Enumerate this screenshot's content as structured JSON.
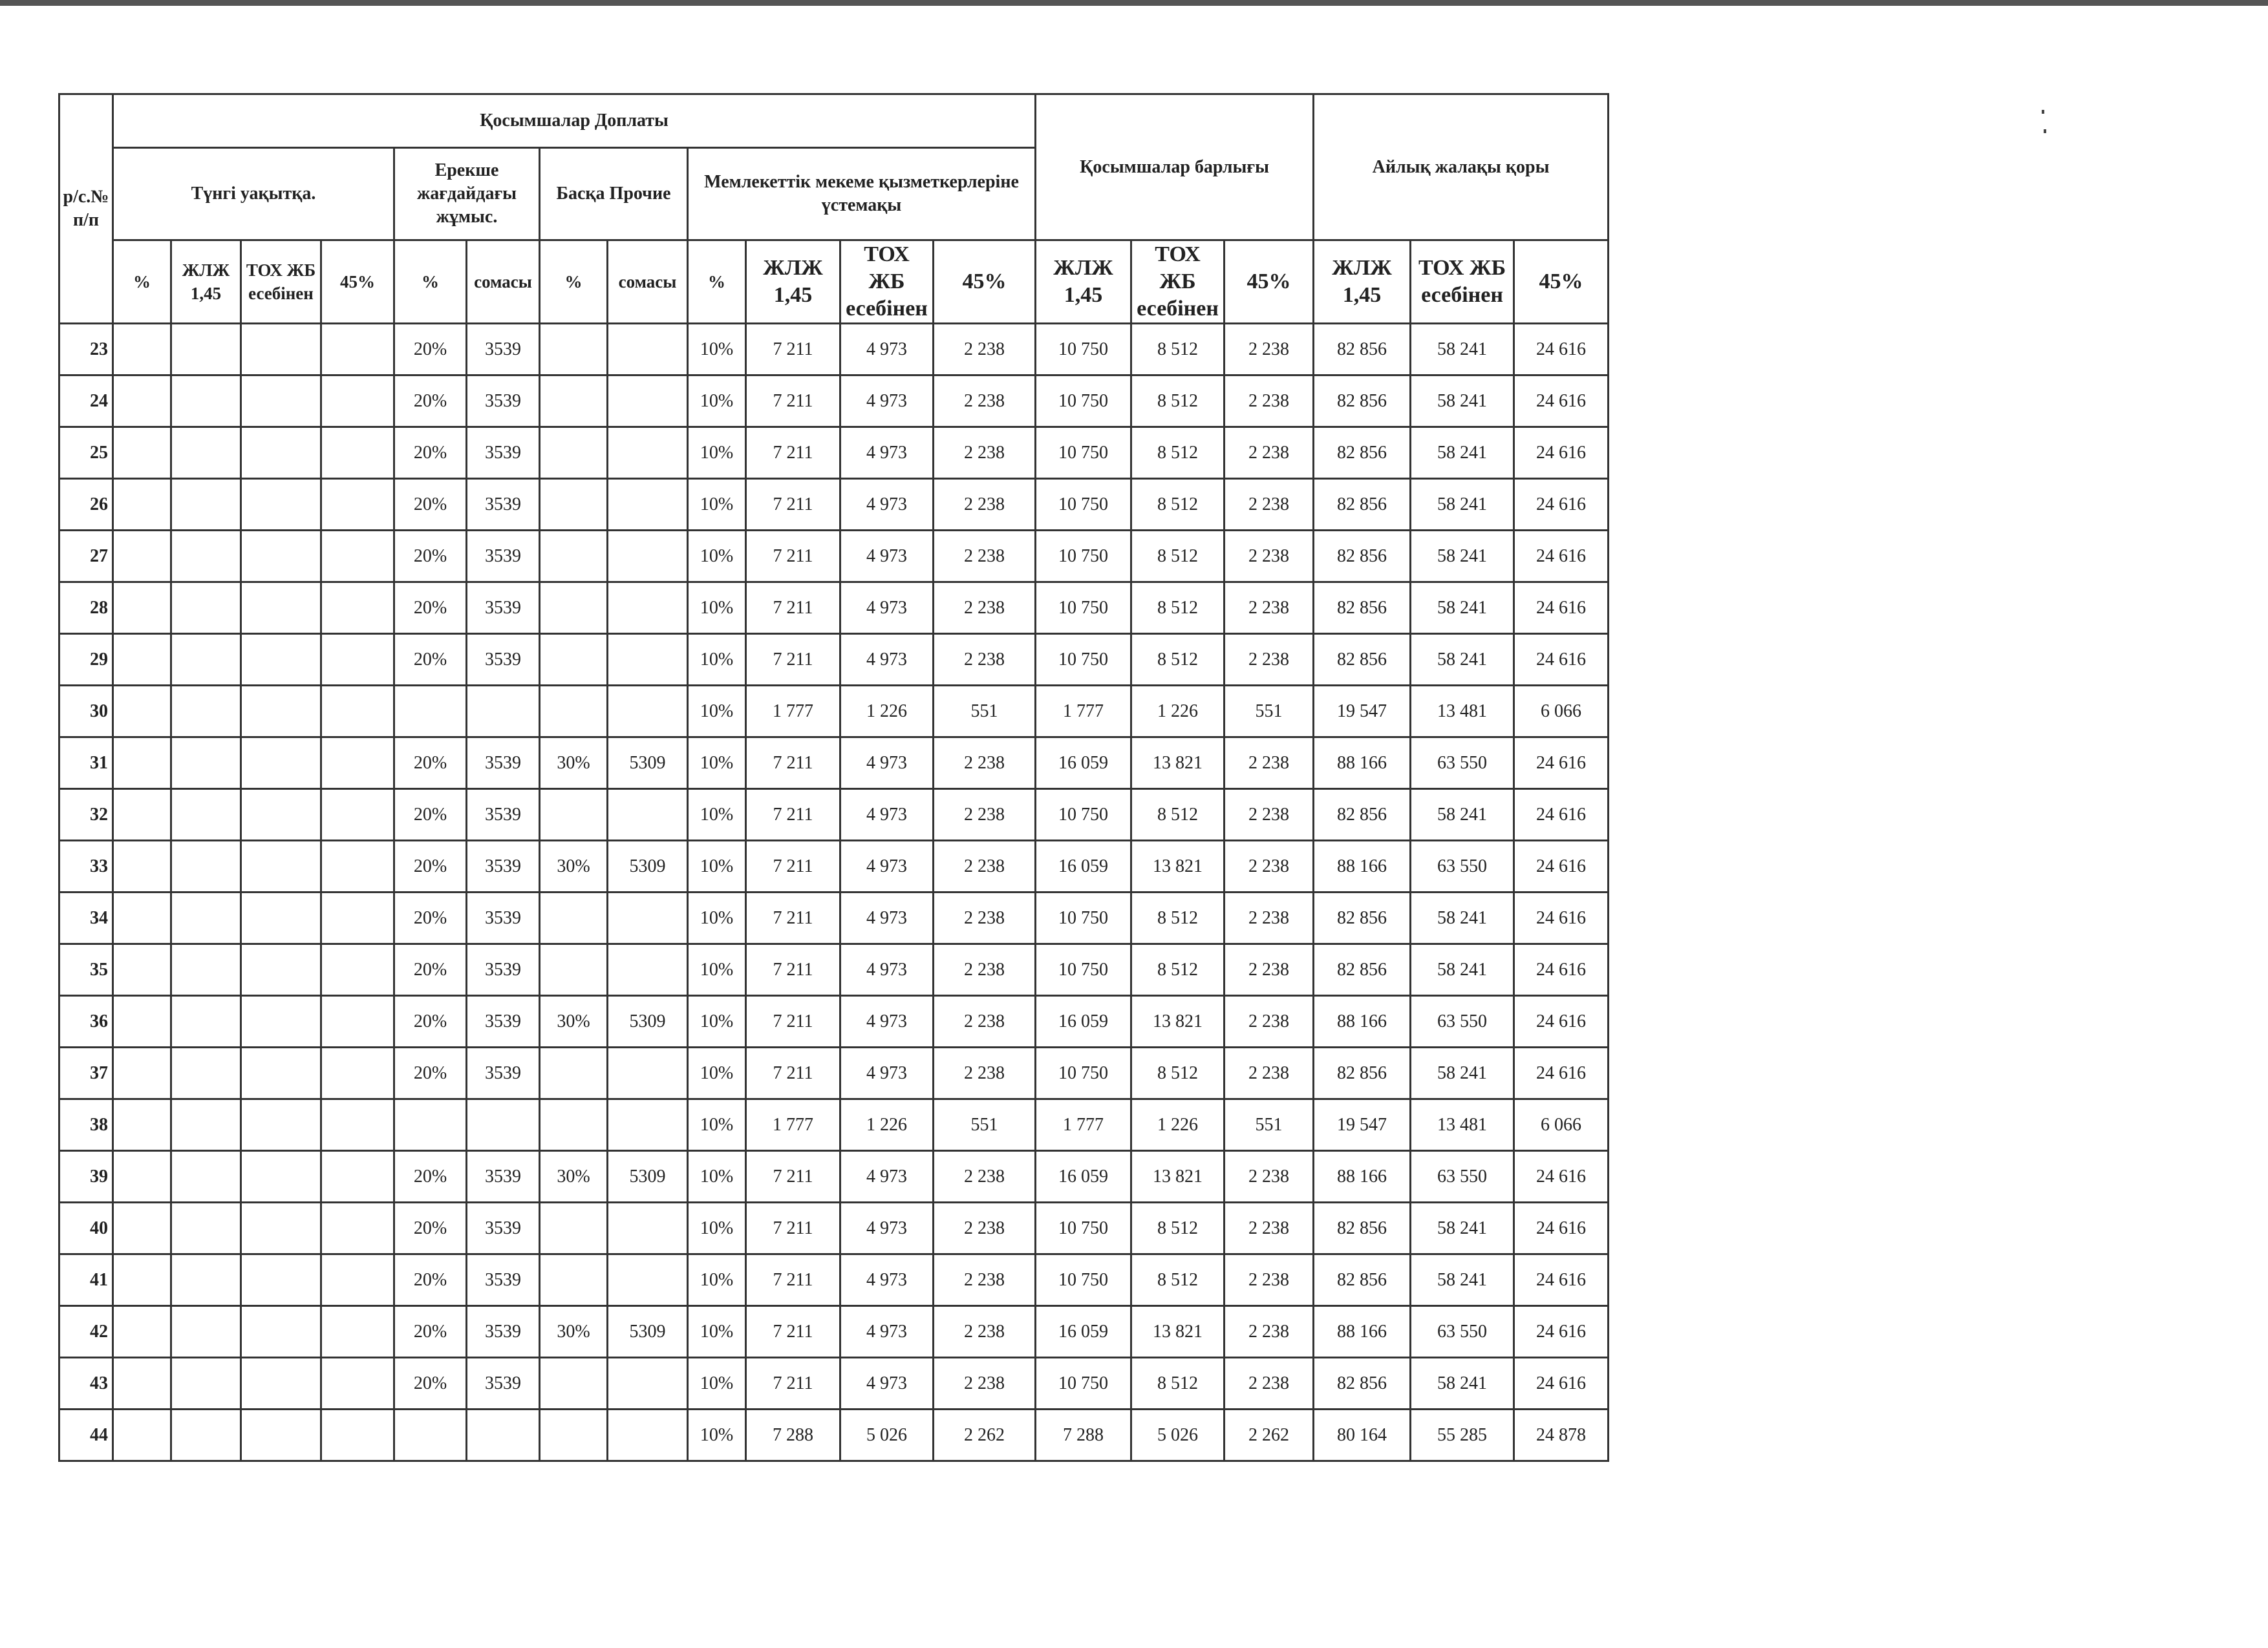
{
  "header": {
    "row_no": "р/с.№ п/п",
    "kosymshalar_doplaty": "Қосымшалар Доплаты",
    "tungi": "Түнгі уақытқа.",
    "ereksha": "Ерекше жағдайдағы жұмыс.",
    "baska": "Басқа Прочие",
    "memlekettik": "Мемлекеттік мекеме  қызметкерлеріне үстемақы",
    "kosymshalar_barlygy": "Қосымшалар барлығы",
    "ailyk": "Айлық жалақы қоры",
    "pct": "%",
    "zhlzh": "ЖЛЖ 1,45",
    "tox": "ТОХ ЖБ есебінен",
    "p45": "45%",
    "somasy": "сомасы"
  },
  "rows": [
    [
      "23",
      "",
      "",
      "",
      "",
      "20%",
      "3539",
      "",
      "",
      "10%",
      "7 211",
      "4 973",
      "2 238",
      "10 750",
      "8 512",
      "2 238",
      "82 856",
      "58 241",
      "24 616"
    ],
    [
      "24",
      "",
      "",
      "",
      "",
      "20%",
      "3539",
      "",
      "",
      "10%",
      "7 211",
      "4 973",
      "2 238",
      "10 750",
      "8 512",
      "2 238",
      "82 856",
      "58 241",
      "24 616"
    ],
    [
      "25",
      "",
      "",
      "",
      "",
      "20%",
      "3539",
      "",
      "",
      "10%",
      "7 211",
      "4 973",
      "2 238",
      "10 750",
      "8 512",
      "2 238",
      "82 856",
      "58 241",
      "24 616"
    ],
    [
      "26",
      "",
      "",
      "",
      "",
      "20%",
      "3539",
      "",
      "",
      "10%",
      "7 211",
      "4 973",
      "2 238",
      "10 750",
      "8 512",
      "2 238",
      "82 856",
      "58 241",
      "24 616"
    ],
    [
      "27",
      "",
      "",
      "",
      "",
      "20%",
      "3539",
      "",
      "",
      "10%",
      "7 211",
      "4 973",
      "2 238",
      "10 750",
      "8 512",
      "2 238",
      "82 856",
      "58 241",
      "24 616"
    ],
    [
      "28",
      "",
      "",
      "",
      "",
      "20%",
      "3539",
      "",
      "",
      "10%",
      "7 211",
      "4 973",
      "2 238",
      "10 750",
      "8 512",
      "2 238",
      "82 856",
      "58 241",
      "24 616"
    ],
    [
      "29",
      "",
      "",
      "",
      "",
      "20%",
      "3539",
      "",
      "",
      "10%",
      "7 211",
      "4 973",
      "2 238",
      "10 750",
      "8 512",
      "2 238",
      "82 856",
      "58 241",
      "24 616"
    ],
    [
      "30",
      "",
      "",
      "",
      "",
      "",
      "",
      "",
      "",
      "10%",
      "1 777",
      "1 226",
      "551",
      "1 777",
      "1 226",
      "551",
      "19 547",
      "13 481",
      "6 066"
    ],
    [
      "31",
      "",
      "",
      "",
      "",
      "20%",
      "3539",
      "30%",
      "5309",
      "10%",
      "7 211",
      "4 973",
      "2 238",
      "16 059",
      "13 821",
      "2 238",
      "88 166",
      "63 550",
      "24 616"
    ],
    [
      "32",
      "",
      "",
      "",
      "",
      "20%",
      "3539",
      "",
      "",
      "10%",
      "7 211",
      "4 973",
      "2 238",
      "10 750",
      "8 512",
      "2 238",
      "82 856",
      "58 241",
      "24 616"
    ],
    [
      "33",
      "",
      "",
      "",
      "",
      "20%",
      "3539",
      "30%",
      "5309",
      "10%",
      "7 211",
      "4 973",
      "2 238",
      "16 059",
      "13 821",
      "2 238",
      "88 166",
      "63 550",
      "24 616"
    ],
    [
      "34",
      "",
      "",
      "",
      "",
      "20%",
      "3539",
      "",
      "",
      "10%",
      "7 211",
      "4 973",
      "2 238",
      "10 750",
      "8 512",
      "2 238",
      "82 856",
      "58 241",
      "24 616"
    ],
    [
      "35",
      "",
      "",
      "",
      "",
      "20%",
      "3539",
      "",
      "",
      "10%",
      "7 211",
      "4 973",
      "2 238",
      "10 750",
      "8 512",
      "2 238",
      "82 856",
      "58 241",
      "24 616"
    ],
    [
      "36",
      "",
      "",
      "",
      "",
      "20%",
      "3539",
      "30%",
      "5309",
      "10%",
      "7 211",
      "4 973",
      "2 238",
      "16 059",
      "13 821",
      "2 238",
      "88 166",
      "63 550",
      "24 616"
    ],
    [
      "37",
      "",
      "",
      "",
      "",
      "20%",
      "3539",
      "",
      "",
      "10%",
      "7 211",
      "4 973",
      "2 238",
      "10 750",
      "8 512",
      "2 238",
      "82 856",
      "58 241",
      "24 616"
    ],
    [
      "38",
      "",
      "",
      "",
      "",
      "",
      "",
      "",
      "",
      "10%",
      "1 777",
      "1 226",
      "551",
      "1 777",
      "1 226",
      "551",
      "19 547",
      "13 481",
      "6 066"
    ],
    [
      "39",
      "",
      "",
      "",
      "",
      "20%",
      "3539",
      "30%",
      "5309",
      "10%",
      "7 211",
      "4 973",
      "2 238",
      "16 059",
      "13 821",
      "2 238",
      "88 166",
      "63 550",
      "24 616"
    ],
    [
      "40",
      "",
      "",
      "",
      "",
      "20%",
      "3539",
      "",
      "",
      "10%",
      "7 211",
      "4 973",
      "2 238",
      "10 750",
      "8 512",
      "2 238",
      "82 856",
      "58 241",
      "24 616"
    ],
    [
      "41",
      "",
      "",
      "",
      "",
      "20%",
      "3539",
      "",
      "",
      "10%",
      "7 211",
      "4 973",
      "2 238",
      "10 750",
      "8 512",
      "2 238",
      "82 856",
      "58 241",
      "24 616"
    ],
    [
      "42",
      "",
      "",
      "",
      "",
      "20%",
      "3539",
      "30%",
      "5309",
      "10%",
      "7 211",
      "4 973",
      "2 238",
      "16 059",
      "13 821",
      "2 238",
      "88 166",
      "63 550",
      "24 616"
    ],
    [
      "43",
      "",
      "",
      "",
      "",
      "20%",
      "3539",
      "",
      "",
      "10%",
      "7 211",
      "4 973",
      "2 238",
      "10 750",
      "8 512",
      "2 238",
      "82 856",
      "58 241",
      "24 616"
    ],
    [
      "44",
      "",
      "",
      "",
      "",
      "",
      "",
      "",
      "",
      "10%",
      "7 288",
      "5 026",
      "2 262",
      "7 288",
      "5 026",
      "2 262",
      "80 164",
      "55 285",
      "24 878"
    ]
  ]
}
